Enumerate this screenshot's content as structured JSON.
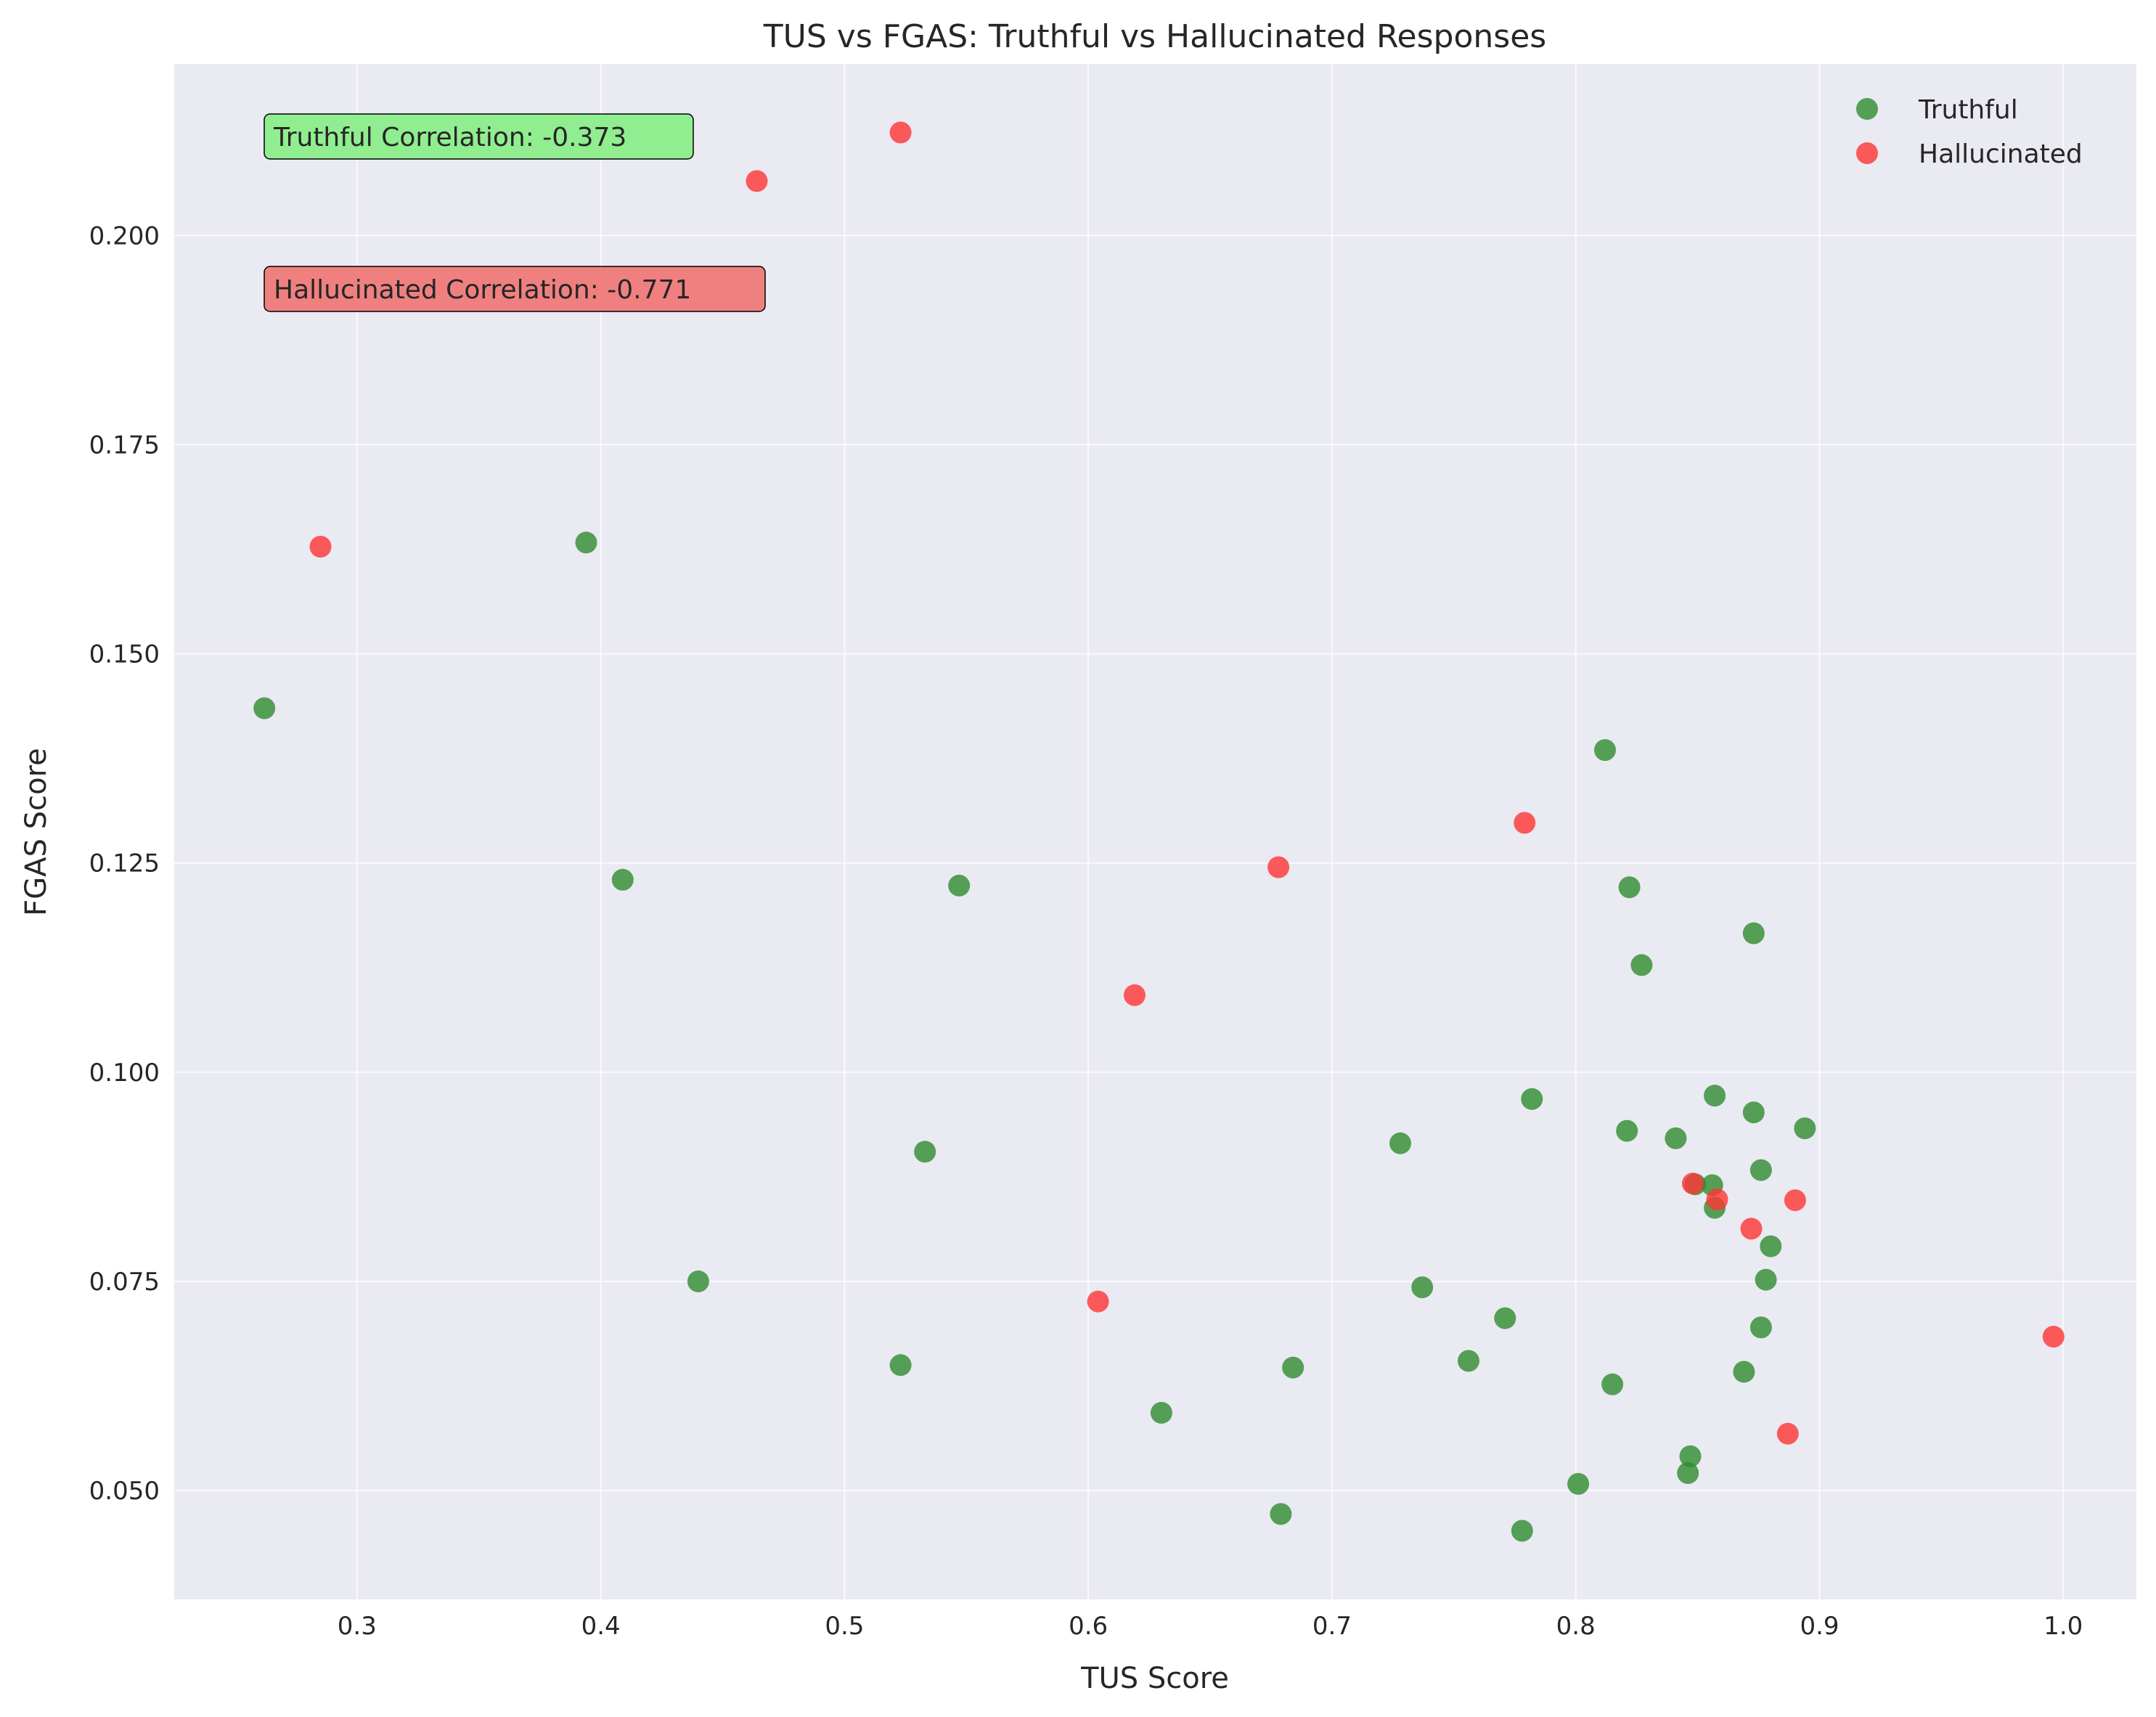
{
  "chart_data": {
    "type": "scatter",
    "title": "TUS vs FGAS: Truthful vs Hallucinated Responses",
    "xlabel": "TUS Score",
    "ylabel": "FGAS Score",
    "xlim": [
      0.225,
      1.03
    ],
    "ylim": [
      0.037,
      0.2205
    ],
    "xticks": [
      0.3,
      0.4,
      0.5,
      0.6,
      0.7,
      0.8,
      0.9,
      1.0
    ],
    "xtick_labels": [
      "0.3",
      "0.4",
      "0.5",
      "0.6",
      "0.7",
      "0.8",
      "0.9",
      "1.0"
    ],
    "yticks": [
      0.05,
      0.075,
      0.1,
      0.125,
      0.15,
      0.175,
      0.2
    ],
    "ytick_labels": [
      "0.050",
      "0.075",
      "0.100",
      "0.125",
      "0.150",
      "0.175",
      "0.200"
    ],
    "grid": true,
    "legend_position": "top-right",
    "colors": {
      "background": "#eaeaf2",
      "grid": "#ffffff",
      "truthful": "#2e8b2e",
      "hallucinated": "#ff3333",
      "truthful_box": "#90ee90",
      "hallucinated_box": "#f08080"
    },
    "series": [
      {
        "name": "Truthful",
        "color": "#2e8b2e",
        "points": [
          [
            0.262,
            0.1435
          ],
          [
            0.394,
            0.1633
          ],
          [
            0.409,
            0.123
          ],
          [
            0.44,
            0.075
          ],
          [
            0.523,
            0.065
          ],
          [
            0.533,
            0.0905
          ],
          [
            0.547,
            0.1223
          ],
          [
            0.63,
            0.0593
          ],
          [
            0.679,
            0.0472
          ],
          [
            0.684,
            0.0647
          ],
          [
            0.728,
            0.0915
          ],
          [
            0.737,
            0.0743
          ],
          [
            0.756,
            0.0655
          ],
          [
            0.771,
            0.0706
          ],
          [
            0.778,
            0.0452
          ],
          [
            0.782,
            0.0968
          ],
          [
            0.801,
            0.0508
          ],
          [
            0.812,
            0.1385
          ],
          [
            0.815,
            0.0627
          ],
          [
            0.821,
            0.093
          ],
          [
            0.822,
            0.1221
          ],
          [
            0.827,
            0.1128
          ],
          [
            0.841,
            0.0921
          ],
          [
            0.846,
            0.0521
          ],
          [
            0.847,
            0.0541
          ],
          [
            0.849,
            0.0866
          ],
          [
            0.856,
            0.0865
          ],
          [
            0.857,
            0.0838
          ],
          [
            0.857,
            0.0972
          ],
          [
            0.869,
            0.0642
          ],
          [
            0.873,
            0.0952
          ],
          [
            0.873,
            0.1166
          ],
          [
            0.876,
            0.0695
          ],
          [
            0.876,
            0.0883
          ],
          [
            0.878,
            0.0752
          ],
          [
            0.88,
            0.0792
          ],
          [
            0.894,
            0.0933
          ]
        ]
      },
      {
        "name": "Hallucinated",
        "color": "#ff3333",
        "points": [
          [
            0.285,
            0.1628
          ],
          [
            0.464,
            0.2065
          ],
          [
            0.523,
            0.2123
          ],
          [
            0.604,
            0.0726
          ],
          [
            0.619,
            0.1092
          ],
          [
            0.678,
            0.1245
          ],
          [
            0.779,
            0.1298
          ],
          [
            0.848,
            0.0867
          ],
          [
            0.858,
            0.0848
          ],
          [
            0.872,
            0.0813
          ],
          [
            0.887,
            0.0568
          ],
          [
            0.89,
            0.0847
          ],
          [
            0.996,
            0.0684
          ]
        ]
      }
    ],
    "annotations": [
      {
        "text": "Truthful Correlation: -0.373",
        "series": "Truthful"
      },
      {
        "text": "Hallucinated Correlation: -0.771",
        "series": "Hallucinated"
      }
    ]
  }
}
